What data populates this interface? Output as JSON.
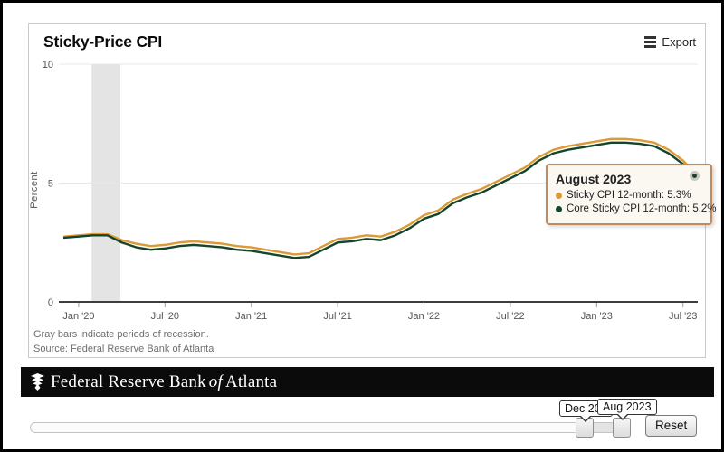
{
  "panel": {
    "title": "Sticky-Price CPI",
    "export_label": "Export",
    "notes": [
      "Gray bars indicate periods of recession.",
      "Source: Federal Reserve Bank of Atlanta"
    ]
  },
  "tooltip": {
    "title": "August 2023",
    "rows": [
      {
        "label": "Sticky CPI 12-month: 5.3%",
        "color": "#DB9A36"
      },
      {
        "label": "Core Sticky CPI 12-month: 5.2%",
        "color": "#15452B"
      }
    ]
  },
  "banner": {
    "text_main": "Federal Reserve Bank",
    "text_of": "of",
    "text_city": "Atlanta"
  },
  "range_slider": {
    "start_label": "Dec 201",
    "end_label": "Aug 2023",
    "reset_label": "Reset"
  },
  "chart_data": {
    "type": "line",
    "title": "Sticky-Price CPI",
    "xlabel": "",
    "ylabel": "Percent",
    "ylim": [
      0,
      10
    ],
    "y_ticks": [
      0,
      5,
      10
    ],
    "grid": true,
    "legend_position": "tooltip",
    "x": [
      "Dec 2019",
      "Jan 2020",
      "Feb 2020",
      "Mar 2020",
      "Apr 2020",
      "May 2020",
      "Jun 2020",
      "Jul 2020",
      "Aug 2020",
      "Sep 2020",
      "Oct 2020",
      "Nov 2020",
      "Dec 2020",
      "Jan 2021",
      "Feb 2021",
      "Mar 2021",
      "Apr 2021",
      "May 2021",
      "Jun 2021",
      "Jul 2021",
      "Aug 2021",
      "Sep 2021",
      "Oct 2021",
      "Nov 2021",
      "Dec 2021",
      "Jan 2022",
      "Feb 2022",
      "Mar 2022",
      "Apr 2022",
      "May 2022",
      "Jun 2022",
      "Jul 2022",
      "Aug 2022",
      "Sep 2022",
      "Oct 2022",
      "Nov 2022",
      "Dec 2022",
      "Jan 2023",
      "Feb 2023",
      "Mar 2023",
      "Apr 2023",
      "May 2023",
      "Jun 2023",
      "Jul 2023",
      "Aug 2023"
    ],
    "x_ticks": [
      {
        "index": 1,
        "label": "Jan '20"
      },
      {
        "index": 7,
        "label": "Jul '20"
      },
      {
        "index": 13,
        "label": "Jan '21"
      },
      {
        "index": 19,
        "label": "Jul '21"
      },
      {
        "index": 25,
        "label": "Jan '22"
      },
      {
        "index": 31,
        "label": "Jul '22"
      },
      {
        "index": 37,
        "label": "Jan '23"
      },
      {
        "index": 43,
        "label": "Jul '23"
      }
    ],
    "recession_bands": [
      {
        "start_index": 1.9,
        "end_index": 3.9
      }
    ],
    "series": [
      {
        "name": "Sticky CPI 12-month",
        "color": "#DB9A36",
        "values": [
          2.75,
          2.8,
          2.85,
          2.85,
          2.6,
          2.45,
          2.35,
          2.4,
          2.5,
          2.55,
          2.5,
          2.45,
          2.35,
          2.3,
          2.2,
          2.1,
          2.0,
          2.05,
          2.35,
          2.65,
          2.7,
          2.8,
          2.75,
          2.95,
          3.25,
          3.65,
          3.85,
          4.3,
          4.55,
          4.75,
          5.05,
          5.35,
          5.65,
          6.1,
          6.4,
          6.55,
          6.65,
          6.75,
          6.85,
          6.85,
          6.8,
          6.7,
          6.4,
          5.95,
          5.3
        ]
      },
      {
        "name": "Core Sticky CPI 12-month",
        "color": "#15452B",
        "values": [
          2.7,
          2.75,
          2.8,
          2.8,
          2.5,
          2.3,
          2.2,
          2.25,
          2.35,
          2.4,
          2.35,
          2.3,
          2.2,
          2.15,
          2.05,
          1.95,
          1.85,
          1.9,
          2.2,
          2.5,
          2.55,
          2.65,
          2.6,
          2.8,
          3.1,
          3.5,
          3.7,
          4.15,
          4.4,
          4.6,
          4.9,
          5.2,
          5.5,
          5.95,
          6.25,
          6.4,
          6.5,
          6.6,
          6.7,
          6.7,
          6.65,
          6.55,
          6.25,
          5.8,
          5.2
        ]
      }
    ],
    "hover_point": {
      "x_label": "August 2023",
      "sticky_value": 5.3,
      "core_value": 5.2
    }
  }
}
